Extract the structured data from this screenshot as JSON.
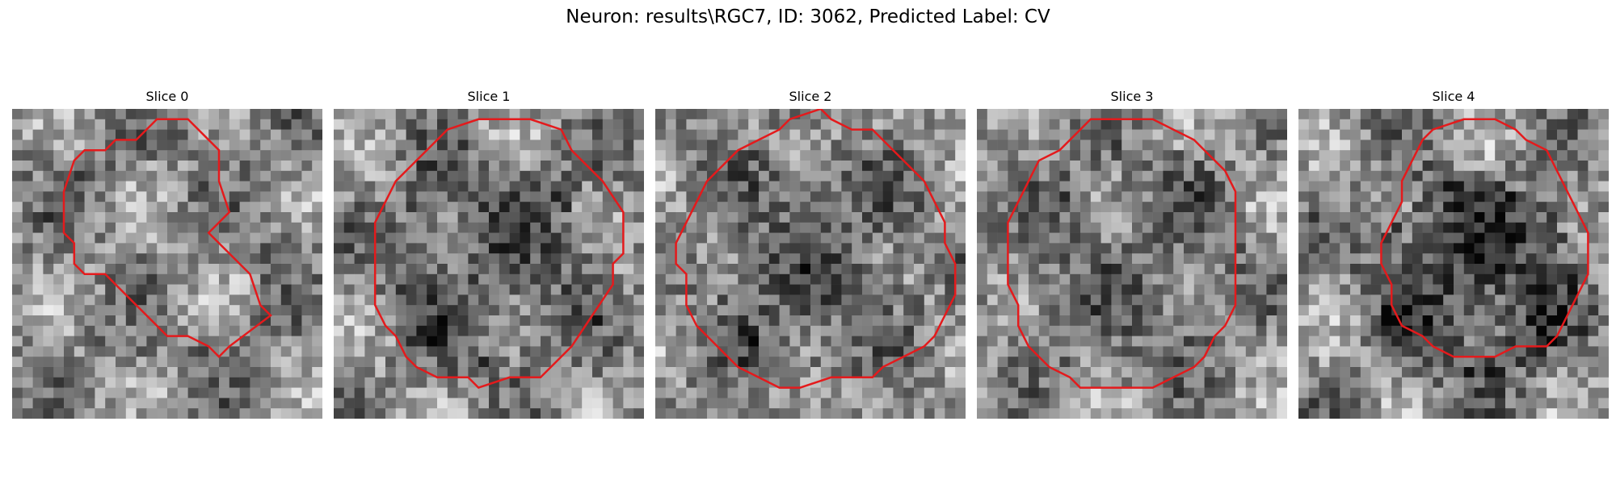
{
  "figure": {
    "title": "Neuron: results\\RGC7, ID: 3062, Predicted Label: CV"
  },
  "panels": [
    {
      "title": "Slice 0",
      "seed": 11,
      "center": [
        0.5,
        0.45
      ],
      "inner_dark": 0.0
    },
    {
      "title": "Slice 1",
      "seed": 23,
      "center": [
        0.5,
        0.5
      ],
      "inner_dark": 0.15
    },
    {
      "title": "Slice 2",
      "seed": 37,
      "center": [
        0.5,
        0.5
      ],
      "inner_dark": 0.15
    },
    {
      "title": "Slice 3",
      "seed": 51,
      "center": [
        0.5,
        0.5
      ],
      "inner_dark": 0.1
    },
    {
      "title": "Slice 4",
      "seed": 67,
      "center": [
        0.57,
        0.55
      ],
      "inner_dark": 0.25
    }
  ],
  "contour_color": "#e41a1c",
  "colormap": "gray",
  "grid_size": 30,
  "contours": [
    [
      [
        12,
        3
      ],
      [
        14,
        1
      ],
      [
        17,
        1
      ],
      [
        19,
        3
      ],
      [
        20,
        4
      ],
      [
        20,
        7
      ],
      [
        21,
        10
      ],
      [
        19,
        12
      ],
      [
        23,
        16
      ],
      [
        24,
        19
      ],
      [
        25,
        20
      ],
      [
        21,
        23
      ],
      [
        20,
        24
      ],
      [
        19,
        23
      ],
      [
        17,
        22
      ],
      [
        15,
        22
      ],
      [
        12,
        19
      ],
      [
        10,
        17
      ],
      [
        9,
        16
      ],
      [
        7,
        16
      ],
      [
        6,
        15
      ],
      [
        6,
        13
      ],
      [
        5,
        12
      ],
      [
        5,
        8
      ],
      [
        6,
        5
      ],
      [
        7,
        4
      ],
      [
        9,
        4
      ],
      [
        10,
        3
      ]
    ],
    [
      [
        11,
        2
      ],
      [
        14,
        1
      ],
      [
        19,
        1
      ],
      [
        22,
        2
      ],
      [
        23,
        4
      ],
      [
        26,
        7
      ],
      [
        28,
        10
      ],
      [
        28,
        14
      ],
      [
        27,
        15
      ],
      [
        27,
        17
      ],
      [
        25,
        20
      ],
      [
        23,
        23
      ],
      [
        21,
        25
      ],
      [
        20,
        26
      ],
      [
        17,
        26
      ],
      [
        14,
        27
      ],
      [
        13,
        26
      ],
      [
        10,
        26
      ],
      [
        8,
        25
      ],
      [
        7,
        24
      ],
      [
        6,
        22
      ],
      [
        5,
        21
      ],
      [
        4,
        19
      ],
      [
        4,
        16
      ],
      [
        4,
        13
      ],
      [
        4,
        11
      ],
      [
        5,
        9
      ],
      [
        6,
        7
      ],
      [
        8,
        5
      ],
      [
        9,
        4
      ]
    ],
    [
      [
        13,
        1
      ],
      [
        16,
        0
      ],
      [
        17,
        1
      ],
      [
        19,
        2
      ],
      [
        21,
        2
      ],
      [
        23,
        4
      ],
      [
        24,
        5
      ],
      [
        26,
        7
      ],
      [
        27,
        9
      ],
      [
        28,
        11
      ],
      [
        28,
        13
      ],
      [
        29,
        15
      ],
      [
        29,
        18
      ],
      [
        28,
        20
      ],
      [
        27,
        22
      ],
      [
        26,
        23
      ],
      [
        24,
        24
      ],
      [
        22,
        25
      ],
      [
        21,
        26
      ],
      [
        19,
        26
      ],
      [
        17,
        26
      ],
      [
        14,
        27
      ],
      [
        12,
        27
      ],
      [
        10,
        26
      ],
      [
        8,
        25
      ],
      [
        7,
        24
      ],
      [
        6,
        23
      ],
      [
        4,
        21
      ],
      [
        3,
        19
      ],
      [
        3,
        16
      ],
      [
        2,
        15
      ],
      [
        2,
        13
      ],
      [
        3,
        11
      ],
      [
        4,
        9
      ],
      [
        5,
        7
      ],
      [
        6,
        6
      ],
      [
        8,
        4
      ],
      [
        10,
        3
      ],
      [
        12,
        2
      ]
    ],
    [
      [
        11,
        1
      ],
      [
        14,
        1
      ],
      [
        17,
        1
      ],
      [
        19,
        2
      ],
      [
        21,
        3
      ],
      [
        22,
        4
      ],
      [
        24,
        6
      ],
      [
        25,
        8
      ],
      [
        25,
        11
      ],
      [
        25,
        14
      ],
      [
        25,
        17
      ],
      [
        25,
        19
      ],
      [
        24,
        21
      ],
      [
        23,
        22
      ],
      [
        22,
        24
      ],
      [
        21,
        25
      ],
      [
        19,
        26
      ],
      [
        17,
        27
      ],
      [
        15,
        27
      ],
      [
        14,
        27
      ],
      [
        12,
        27
      ],
      [
        10,
        27
      ],
      [
        9,
        26
      ],
      [
        7,
        25
      ],
      [
        6,
        24
      ],
      [
        5,
        23
      ],
      [
        4,
        21
      ],
      [
        4,
        19
      ],
      [
        3,
        17
      ],
      [
        3,
        14
      ],
      [
        3,
        11
      ],
      [
        4,
        9
      ],
      [
        5,
        7
      ],
      [
        6,
        5
      ],
      [
        8,
        4
      ],
      [
        10,
        2
      ]
    ],
    [
      [
        12,
        3
      ],
      [
        13,
        2
      ],
      [
        16,
        1
      ],
      [
        19,
        1
      ],
      [
        21,
        2
      ],
      [
        22,
        3
      ],
      [
        24,
        4
      ],
      [
        25,
        6
      ],
      [
        26,
        8
      ],
      [
        27,
        10
      ],
      [
        28,
        12
      ],
      [
        28,
        14
      ],
      [
        28,
        16
      ],
      [
        27,
        18
      ],
      [
        26,
        20
      ],
      [
        25,
        22
      ],
      [
        24,
        23
      ],
      [
        21,
        23
      ],
      [
        19,
        24
      ],
      [
        17,
        24
      ],
      [
        15,
        24
      ],
      [
        13,
        23
      ],
      [
        12,
        22
      ],
      [
        10,
        21
      ],
      [
        9,
        19
      ],
      [
        9,
        17
      ],
      [
        8,
        15
      ],
      [
        8,
        13
      ],
      [
        9,
        11
      ],
      [
        10,
        9
      ],
      [
        10,
        7
      ],
      [
        11,
        5
      ]
    ]
  ]
}
